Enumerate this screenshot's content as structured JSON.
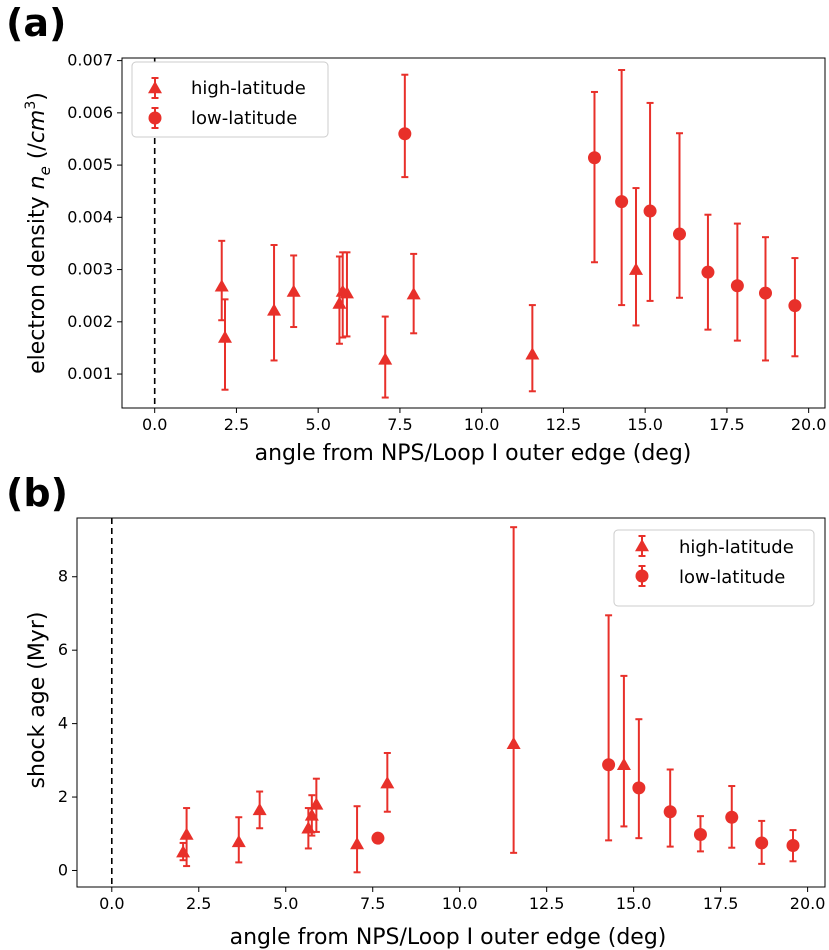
{
  "colors": {
    "marker": "#e8302a",
    "axis": "#000000",
    "legend_border": "#cccccc"
  },
  "chart_data": [
    {
      "panel_label": "(a)",
      "type": "scatter",
      "xlabel": "angle from NPS/Loop I outer edge (deg)",
      "ylabel_main": "electron density ",
      "ylabel_var": "n",
      "ylabel_sub": "e",
      "ylabel_unit_pre": " (/",
      "ylabel_unit_var": "cm",
      "ylabel_unit_sup": "3",
      "ylabel_unit_post": ")",
      "xlim": [
        -1.0,
        20.5
      ],
      "ylim": [
        0.00035,
        0.00705
      ],
      "xticks": [
        0.0,
        2.5,
        5.0,
        7.5,
        10.0,
        12.5,
        15.0,
        17.5,
        20.0
      ],
      "xtick_labels": [
        "0.0",
        "2.5",
        "5.0",
        "7.5",
        "10.0",
        "12.5",
        "15.0",
        "17.5",
        "20.0"
      ],
      "yticks": [
        0.001,
        0.002,
        0.003,
        0.004,
        0.005,
        0.006,
        0.007
      ],
      "ytick_labels": [
        "0.001",
        "0.002",
        "0.003",
        "0.004",
        "0.005",
        "0.006",
        "0.007"
      ],
      "vline_x": 0.0,
      "legend": "upper left",
      "series": [
        {
          "name": "high-latitude",
          "marker": "triangle",
          "points": [
            {
              "x": 2.05,
              "y": 0.00268,
              "lo": 0.00203,
              "hi": 0.00355
            },
            {
              "x": 2.15,
              "y": 0.0017,
              "lo": 0.0007,
              "hi": 0.00243
            },
            {
              "x": 3.65,
              "y": 0.00222,
              "lo": 0.00126,
              "hi": 0.00347
            },
            {
              "x": 4.25,
              "y": 0.00258,
              "lo": 0.0019,
              "hi": 0.00327
            },
            {
              "x": 5.65,
              "y": 0.00235,
              "lo": 0.00158,
              "hi": 0.00325
            },
            {
              "x": 5.75,
              "y": 0.00258,
              "lo": 0.0017,
              "hi": 0.00333
            },
            {
              "x": 5.88,
              "y": 0.00255,
              "lo": 0.00172,
              "hi": 0.00333
            },
            {
              "x": 7.05,
              "y": 0.00128,
              "lo": 0.00055,
              "hi": 0.0021
            },
            {
              "x": 7.92,
              "y": 0.00253,
              "lo": 0.00178,
              "hi": 0.0033
            },
            {
              "x": 11.55,
              "y": 0.00138,
              "lo": 0.00067,
              "hi": 0.00232
            },
            {
              "x": 14.72,
              "y": 0.003,
              "lo": 0.00193,
              "hi": 0.00456
            }
          ]
        },
        {
          "name": "low-latitude",
          "marker": "circle",
          "points": [
            {
              "x": 7.65,
              "y": 0.0056,
              "lo": 0.00477,
              "hi": 0.00673
            },
            {
              "x": 13.45,
              "y": 0.00514,
              "lo": 0.00314,
              "hi": 0.0064
            },
            {
              "x": 14.28,
              "y": 0.0043,
              "lo": 0.00232,
              "hi": 0.00682
            },
            {
              "x": 15.15,
              "y": 0.00412,
              "lo": 0.0024,
              "hi": 0.00619
            },
            {
              "x": 16.05,
              "y": 0.00368,
              "lo": 0.00246,
              "hi": 0.00561
            },
            {
              "x": 16.92,
              "y": 0.00295,
              "lo": 0.00185,
              "hi": 0.00405
            },
            {
              "x": 17.82,
              "y": 0.00269,
              "lo": 0.00164,
              "hi": 0.00388
            },
            {
              "x": 18.68,
              "y": 0.00255,
              "lo": 0.00126,
              "hi": 0.00362
            },
            {
              "x": 19.58,
              "y": 0.00231,
              "lo": 0.00134,
              "hi": 0.00322
            }
          ]
        }
      ]
    },
    {
      "panel_label": "(b)",
      "type": "scatter",
      "xlabel": "angle from NPS/Loop I outer edge (deg)",
      "ylabel": "shock age (Myr)",
      "xlim": [
        -1.0,
        20.5
      ],
      "ylim": [
        -0.45,
        9.6
      ],
      "xticks": [
        0.0,
        2.5,
        5.0,
        7.5,
        10.0,
        12.5,
        15.0,
        17.5,
        20.0
      ],
      "xtick_labels": [
        "0.0",
        "2.5",
        "5.0",
        "7.5",
        "10.0",
        "12.5",
        "15.0",
        "17.5",
        "20.0"
      ],
      "yticks": [
        0,
        2,
        4,
        6,
        8
      ],
      "ytick_labels": [
        "0",
        "2",
        "4",
        "6",
        "8"
      ],
      "vline_x": 0.0,
      "legend": "upper right",
      "series": [
        {
          "name": "high-latitude",
          "marker": "triangle",
          "points": [
            {
              "x": 2.05,
              "y": 0.5,
              "lo": 0.28,
              "hi": 0.75
            },
            {
              "x": 2.15,
              "y": 0.98,
              "lo": 0.12,
              "hi": 1.7
            },
            {
              "x": 3.65,
              "y": 0.78,
              "lo": 0.22,
              "hi": 1.45
            },
            {
              "x": 4.25,
              "y": 1.65,
              "lo": 1.15,
              "hi": 2.15
            },
            {
              "x": 5.65,
              "y": 1.15,
              "lo": 0.6,
              "hi": 1.7
            },
            {
              "x": 5.75,
              "y": 1.5,
              "lo": 0.95,
              "hi": 2.05
            },
            {
              "x": 5.88,
              "y": 1.8,
              "lo": 1.05,
              "hi": 2.5
            },
            {
              "x": 7.05,
              "y": 0.72,
              "lo": -0.05,
              "hi": 1.75
            },
            {
              "x": 7.92,
              "y": 2.38,
              "lo": 1.6,
              "hi": 3.2
            },
            {
              "x": 11.55,
              "y": 3.45,
              "lo": 0.48,
              "hi": 9.35
            },
            {
              "x": 14.72,
              "y": 2.88,
              "lo": 1.2,
              "hi": 5.3
            }
          ]
        },
        {
          "name": "low-latitude",
          "marker": "circle",
          "points": [
            {
              "x": 7.65,
              "y": 0.88,
              "lo": 0.88,
              "hi": 0.88
            },
            {
              "x": 14.28,
              "y": 2.88,
              "lo": 0.82,
              "hi": 6.95
            },
            {
              "x": 15.15,
              "y": 2.25,
              "lo": 0.88,
              "hi": 4.12
            },
            {
              "x": 16.05,
              "y": 1.6,
              "lo": 0.65,
              "hi": 2.75
            },
            {
              "x": 16.92,
              "y": 0.98,
              "lo": 0.52,
              "hi": 1.48
            },
            {
              "x": 17.82,
              "y": 1.45,
              "lo": 0.62,
              "hi": 2.3
            },
            {
              "x": 18.68,
              "y": 0.75,
              "lo": 0.18,
              "hi": 1.35
            },
            {
              "x": 19.58,
              "y": 0.68,
              "lo": 0.25,
              "hi": 1.1
            }
          ]
        }
      ]
    }
  ]
}
